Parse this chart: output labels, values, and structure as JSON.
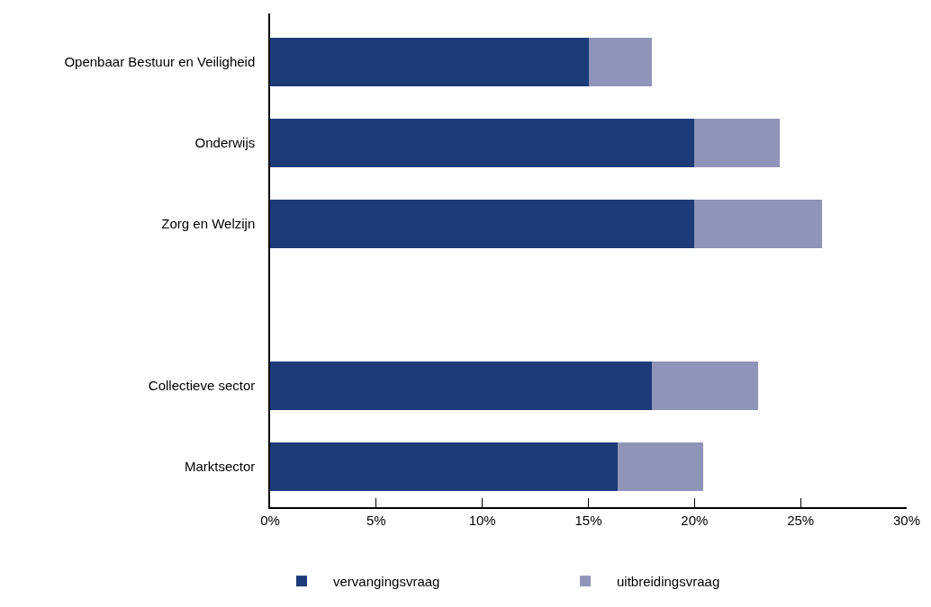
{
  "chart_data": {
    "type": "bar",
    "orientation": "horizontal",
    "stacked": true,
    "categories": [
      "Openbaar Bestuur en Veiligheid",
      "Onderwijs",
      "Zorg en Welzijn",
      null,
      "Collectieve sector",
      "Marktsector"
    ],
    "series": [
      {
        "name": "vervangingsvraag",
        "color": "#1c3b78",
        "values": [
          15,
          20,
          20,
          null,
          18,
          16.4
        ]
      },
      {
        "name": "uitbreidingsvraag",
        "color": "#9094b9",
        "values": [
          3,
          4,
          6,
          null,
          5,
          4
        ]
      }
    ],
    "xlim": [
      0,
      30
    ],
    "xticks": [
      {
        "value": 0,
        "label": "0%"
      },
      {
        "value": 5,
        "label": "5%"
      },
      {
        "value": 10,
        "label": "10%"
      },
      {
        "value": 15,
        "label": "15%"
      },
      {
        "value": 20,
        "label": "20%"
      },
      {
        "value": 25,
        "label": "25%"
      },
      {
        "value": 30,
        "label": "30%"
      }
    ],
    "legend": "bottom"
  }
}
